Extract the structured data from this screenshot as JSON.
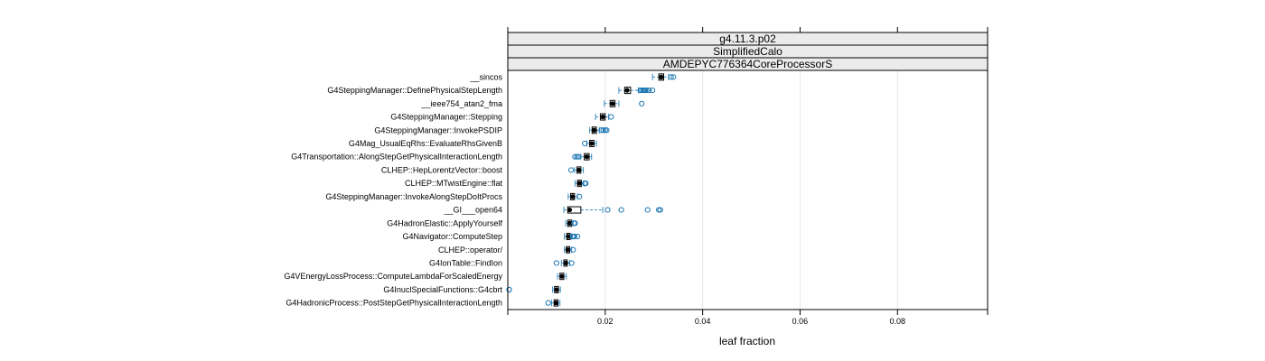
{
  "chart_data": {
    "type": "boxplot",
    "strips": [
      "g4.11.3.p02",
      "SimplifiedCalo",
      "AMDEPYC776364CoreProcessorS"
    ],
    "xlabel": "leaf fraction",
    "xlim": [
      0.0,
      0.0985
    ],
    "xticks": [
      0.02,
      0.04,
      0.06,
      0.08
    ],
    "xtick_labels": [
      "0.02",
      "0.04",
      "0.06",
      "0.08"
    ],
    "colors": {
      "box": "#000000",
      "whisker": "#3a8fc0",
      "outlier": "#1f78b4",
      "median": "#000000"
    },
    "categories": [
      "__sincos",
      "G4SteppingManager::DefinePhysicalStepLength",
      "__ieee754_atan2_fma",
      "G4SteppingManager::Stepping",
      "G4SteppingManager::InvokePSDIP",
      "G4Mag_UsualEqRhs::EvaluateRhsGivenB",
      "G4Transportation::AlongStepGetPhysicalInteractionLength",
      "CLHEP::HepLorentzVector::boost",
      "CLHEP::MTwistEngine::flat",
      "G4SteppingManager::InvokeAlongStepDoItProcs",
      "__GI___open64",
      "G4HadronElastic::ApplyYourself",
      "G4Navigator::ComputeStep",
      "CLHEP::operator/",
      "G4IonTable::FindIon",
      "G4VEnergyLossProcess::ComputeLambdaForScaledEnergy",
      "G4InuclSpecialFunctions::G4cbrt",
      "G4HadronicProcess::PostStepGetPhysicalInteractionLength"
    ],
    "boxes": [
      {
        "whisker_lo": 0.0297,
        "q1": 0.031,
        "median": 0.0315,
        "q3": 0.032,
        "whisker_hi": 0.033,
        "outliers": [
          0.0335,
          0.034
        ]
      },
      {
        "whisker_lo": 0.0228,
        "q1": 0.024,
        "median": 0.0245,
        "q3": 0.0252,
        "whisker_hi": 0.0268,
        "outliers": [
          0.0272,
          0.0275,
          0.0278,
          0.028,
          0.0282,
          0.0285,
          0.029,
          0.0297
        ]
      },
      {
        "whisker_lo": 0.0198,
        "q1": 0.021,
        "median": 0.0215,
        "q3": 0.022,
        "whisker_hi": 0.0228,
        "outliers": [
          0.0275
        ]
      },
      {
        "whisker_lo": 0.018,
        "q1": 0.019,
        "median": 0.0195,
        "q3": 0.02,
        "whisker_hi": 0.0207,
        "outliers": [
          0.0212
        ]
      },
      {
        "whisker_lo": 0.0168,
        "q1": 0.0173,
        "median": 0.0177,
        "q3": 0.0182,
        "whisker_hi": 0.0188,
        "outliers": [
          0.0192,
          0.0196,
          0.02,
          0.0203
        ]
      },
      {
        "whisker_lo": 0.0162,
        "q1": 0.0168,
        "median": 0.0172,
        "q3": 0.0177,
        "whisker_hi": 0.0182,
        "outliers": [
          0.0158
        ]
      },
      {
        "whisker_lo": 0.015,
        "q1": 0.0157,
        "median": 0.0162,
        "q3": 0.0167,
        "whisker_hi": 0.0172,
        "outliers": [
          0.0138,
          0.0142,
          0.0145
        ]
      },
      {
        "whisker_lo": 0.0137,
        "q1": 0.0142,
        "median": 0.0146,
        "q3": 0.015,
        "whisker_hi": 0.0155,
        "outliers": [
          0.013
        ]
      },
      {
        "whisker_lo": 0.0138,
        "q1": 0.0143,
        "median": 0.0147,
        "q3": 0.0151,
        "whisker_hi": 0.0156,
        "outliers": [
          0.0158,
          0.016
        ]
      },
      {
        "whisker_lo": 0.0124,
        "q1": 0.0129,
        "median": 0.0133,
        "q3": 0.0137,
        "whisker_hi": 0.0143,
        "outliers": [
          0.0147
        ]
      },
      {
        "whisker_lo": 0.0115,
        "q1": 0.0123,
        "median": 0.0127,
        "q3": 0.015,
        "whisker_hi": 0.0195,
        "outliers": [
          0.0205,
          0.0233,
          0.0287,
          0.031,
          0.0313
        ]
      },
      {
        "whisker_lo": 0.0119,
        "q1": 0.0123,
        "median": 0.0127,
        "q3": 0.0131,
        "whisker_hi": 0.0134,
        "outliers": [
          0.0136,
          0.0138
        ]
      },
      {
        "whisker_lo": 0.0116,
        "q1": 0.0121,
        "median": 0.0124,
        "q3": 0.0128,
        "whisker_hi": 0.0131,
        "outliers": [
          0.0133,
          0.0135,
          0.0137,
          0.0143
        ]
      },
      {
        "whisker_lo": 0.0116,
        "q1": 0.012,
        "median": 0.0123,
        "q3": 0.0127,
        "whisker_hi": 0.0131,
        "outliers": [
          0.0134
        ]
      },
      {
        "whisker_lo": 0.011,
        "q1": 0.0115,
        "median": 0.0119,
        "q3": 0.0122,
        "whisker_hi": 0.0127,
        "outliers": [
          0.01,
          0.0131
        ]
      },
      {
        "whisker_lo": 0.0102,
        "q1": 0.0107,
        "median": 0.0111,
        "q3": 0.0115,
        "whisker_hi": 0.012,
        "outliers": []
      },
      {
        "whisker_lo": 0.0092,
        "q1": 0.0096,
        "median": 0.01,
        "q3": 0.0104,
        "whisker_hi": 0.0108,
        "outliers": [
          0.0001,
          0.0002
        ]
      },
      {
        "whisker_lo": 0.009,
        "q1": 0.0095,
        "median": 0.0099,
        "q3": 0.0103,
        "whisker_hi": 0.0107,
        "outliers": [
          0.0083
        ]
      }
    ]
  }
}
